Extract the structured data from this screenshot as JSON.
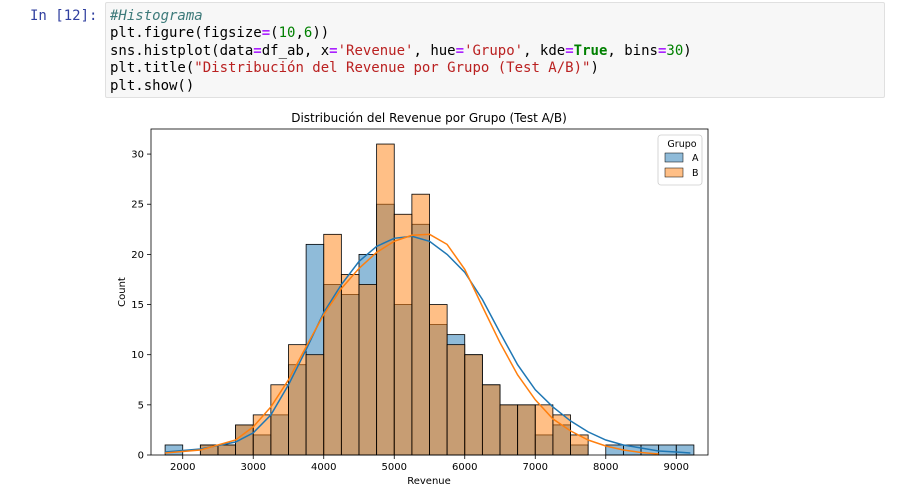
{
  "cell": {
    "prompt": "In [12]:",
    "code": {
      "l1": "#Histograma",
      "l2_a": "plt.figure(figsize",
      "l2_eq": "=",
      "l2_b": "(",
      "l2_n1": "10",
      "l2_c": ",",
      "l2_n2": "6",
      "l2_d": "))",
      "l3_a": "sns.histplot(data",
      "l3_eq1": "=",
      "l3_b": "df_ab, x",
      "l3_eq2": "=",
      "l3_s1": "'Revenue'",
      "l3_c": ", hue",
      "l3_eq3": "=",
      "l3_s2": "'Grupo'",
      "l3_d": ", kde",
      "l3_eq4": "=",
      "l3_kw": "True",
      "l3_e": ", bins",
      "l3_eq5": "=",
      "l3_n": "30",
      "l3_f": ")",
      "l4_a": "plt.title(",
      "l4_s": "\"Distribución del Revenue por Grupo (Test A/B)\"",
      "l4_b": ")",
      "l5": "plt.show()"
    }
  },
  "chart_data": {
    "type": "bar",
    "title": "Distribución del Revenue por Grupo (Test A/B)",
    "xlabel": "Revenue",
    "ylabel": "Count",
    "xlim": [
      1550,
      9450
    ],
    "ylim": [
      0,
      32.5
    ],
    "xticks": [
      2000,
      3000,
      4000,
      5000,
      6000,
      7000,
      8000,
      9000
    ],
    "yticks": [
      0,
      5,
      10,
      15,
      20,
      25,
      30
    ],
    "bin_start": 1750,
    "bin_width": 250,
    "legend": {
      "title": "Grupo",
      "position": "top-right"
    },
    "series": [
      {
        "name": "A",
        "color": "#1f77b4",
        "values": [
          1,
          0,
          1,
          1,
          3,
          2,
          4,
          9,
          21,
          17,
          16,
          20,
          25,
          15,
          23,
          13,
          12,
          10,
          7,
          5,
          5,
          2,
          3,
          1,
          0,
          1,
          1,
          1,
          1,
          1
        ]
      },
      {
        "name": "B",
        "color": "#ff7f0e",
        "values": [
          0,
          0,
          1,
          1,
          3,
          4,
          7,
          11,
          10,
          22,
          18,
          17,
          31,
          24,
          26,
          15,
          11,
          10,
          7,
          5,
          5,
          5,
          4,
          2,
          0,
          0,
          0,
          0,
          0,
          0
        ]
      }
    ],
    "kde": [
      {
        "name": "A",
        "color": "#1f77b4",
        "points": [
          [
            1750,
            0.3
          ],
          [
            2250,
            0.6
          ],
          [
            2750,
            1.3
          ],
          [
            3000,
            2.2
          ],
          [
            3250,
            4.0
          ],
          [
            3500,
            7.0
          ],
          [
            3750,
            10.5
          ],
          [
            4000,
            14.2
          ],
          [
            4250,
            17.0
          ],
          [
            4500,
            19.3
          ],
          [
            4750,
            20.8
          ],
          [
            5000,
            21.6
          ],
          [
            5250,
            21.8
          ],
          [
            5500,
            21.3
          ],
          [
            5750,
            20.0
          ],
          [
            6000,
            18.2
          ],
          [
            6250,
            15.5
          ],
          [
            6500,
            12.2
          ],
          [
            6750,
            9.0
          ],
          [
            7000,
            6.5
          ],
          [
            7250,
            4.8
          ],
          [
            7500,
            3.4
          ],
          [
            7750,
            2.3
          ],
          [
            8000,
            1.5
          ],
          [
            8250,
            1.0
          ],
          [
            8500,
            0.7
          ],
          [
            8750,
            0.4
          ],
          [
            9000,
            0.3
          ],
          [
            9200,
            0.2
          ]
        ]
      },
      {
        "name": "B",
        "color": "#ff7f0e",
        "points": [
          [
            1750,
            0.2
          ],
          [
            2250,
            0.5
          ],
          [
            2750,
            1.5
          ],
          [
            3000,
            2.8
          ],
          [
            3250,
            4.8
          ],
          [
            3500,
            7.5
          ],
          [
            3750,
            10.8
          ],
          [
            4000,
            14.0
          ],
          [
            4250,
            16.6
          ],
          [
            4500,
            18.6
          ],
          [
            4750,
            20.2
          ],
          [
            5000,
            21.3
          ],
          [
            5250,
            21.9
          ],
          [
            5500,
            22.0
          ],
          [
            5750,
            21.0
          ],
          [
            6000,
            18.5
          ],
          [
            6250,
            14.8
          ],
          [
            6500,
            11.2
          ],
          [
            6750,
            8.0
          ],
          [
            7000,
            5.5
          ],
          [
            7250,
            3.6
          ],
          [
            7500,
            2.4
          ],
          [
            7750,
            1.5
          ],
          [
            8000,
            0.9
          ],
          [
            8250,
            0.5
          ],
          [
            8500,
            0.25
          ],
          [
            8750,
            0.1
          ]
        ]
      }
    ]
  }
}
